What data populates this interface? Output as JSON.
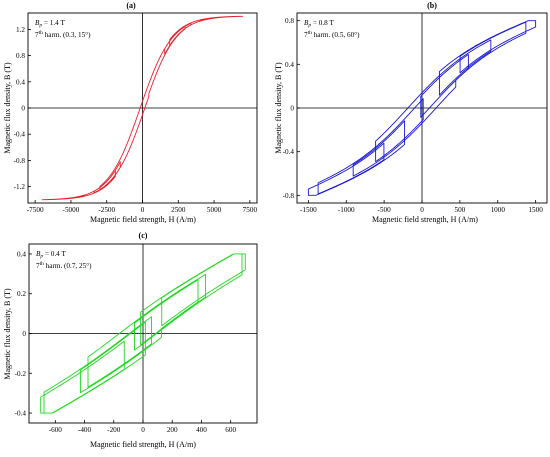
{
  "chart_data": [
    {
      "type": "line",
      "panel_label": "(a)",
      "xlabel": "Magnetic field strength, H (A/m)",
      "ylabel": "Magnetic flux density, B (T)",
      "xlim": [
        -8000,
        8000
      ],
      "ylim": [
        -1.45,
        1.45
      ],
      "xticks": [
        -7500,
        -5000,
        -2500,
        0,
        2500,
        5000,
        7500
      ],
      "xtick_labels": [
        "-7500",
        "-5000",
        "-2500",
        "0",
        "2500",
        "5000",
        "7500"
      ],
      "yticks": [
        -1.2,
        -0.8,
        -0.4,
        0,
        0.4,
        0.8,
        1.2
      ],
      "ytick_labels": [
        "-1.2",
        "-0.8",
        "-0.4",
        "0",
        "0.4",
        "0.8",
        "1.2"
      ],
      "annotation": {
        "line1_prefix": "B",
        "line1_sub": "p",
        "line1_suffix": " = 1.4 T",
        "line2_prefix": "7",
        "line2_sup": "th",
        "line2_suffix": " harm. (0.3, 15°)"
      },
      "color": "#e8202a",
      "grid": false,
      "loop": {
        "Hmax": 7000,
        "Bp": 1.4,
        "harm_amp": 0.3,
        "harm_phase_deg": 15,
        "Hc": 260,
        "shape": "tanh"
      }
    },
    {
      "type": "line",
      "panel_label": "(b)",
      "xlabel": "Magnetic field strength, H (A/m)",
      "ylabel": "Magnetic flux density, B (T)",
      "xlim": [
        -1650,
        1650
      ],
      "ylim": [
        -0.87,
        0.87
      ],
      "xticks": [
        -1500,
        -1000,
        -500,
        0,
        500,
        1000,
        1500
      ],
      "xtick_labels": [
        "-1500",
        "-1000",
        "-500",
        "0",
        "500",
        "1000",
        "1500"
      ],
      "yticks": [
        -0.8,
        -0.4,
        0,
        0.4,
        0.8
      ],
      "ytick_labels": [
        "-0.8",
        "-0.4",
        "0",
        "0.4",
        "0.8"
      ],
      "annotation": {
        "line1_prefix": "B",
        "line1_sub": "p",
        "line1_suffix": " = 0.8 T",
        "line2_prefix": "7",
        "line2_sup": "th",
        "line2_suffix": " harm. (0.5, 60°)"
      },
      "color": "#1515d6",
      "grid": false,
      "loop": {
        "Hmax": 1500,
        "Bp": 0.8,
        "harm_amp": 0.5,
        "harm_phase_deg": 60,
        "Hc": 250,
        "shape": "mixed"
      }
    },
    {
      "type": "line",
      "panel_label": "(c)",
      "xlabel": "Magnetic field strength, H (A/m)",
      "ylabel": "Magnetic flux density, B (T)",
      "xlim": [
        -780,
        780
      ],
      "ylim": [
        -0.45,
        0.45
      ],
      "xticks": [
        -600,
        -400,
        -200,
        0,
        200,
        400,
        600
      ],
      "xtick_labels": [
        "-600",
        "-400",
        "-200",
        "0",
        "200",
        "400",
        "600"
      ],
      "yticks": [
        -0.4,
        -0.2,
        0,
        0.2,
        0.4
      ],
      "ytick_labels": [
        "-0.4",
        "-0.2",
        "0",
        "0.2",
        "0.4"
      ],
      "annotation": {
        "line1_prefix": "B",
        "line1_sub": "p",
        "line1_suffix": " = 0.4 T",
        "line2_prefix": "7",
        "line2_sup": "th",
        "line2_suffix": " harm. (0.7, 25°)"
      },
      "color": "#1ed81e",
      "grid": false,
      "loop": {
        "Hmax": 700,
        "Bp": 0.4,
        "harm_amp": 0.7,
        "harm_phase_deg": 25,
        "Hc": 200,
        "shape": "linear"
      }
    }
  ]
}
